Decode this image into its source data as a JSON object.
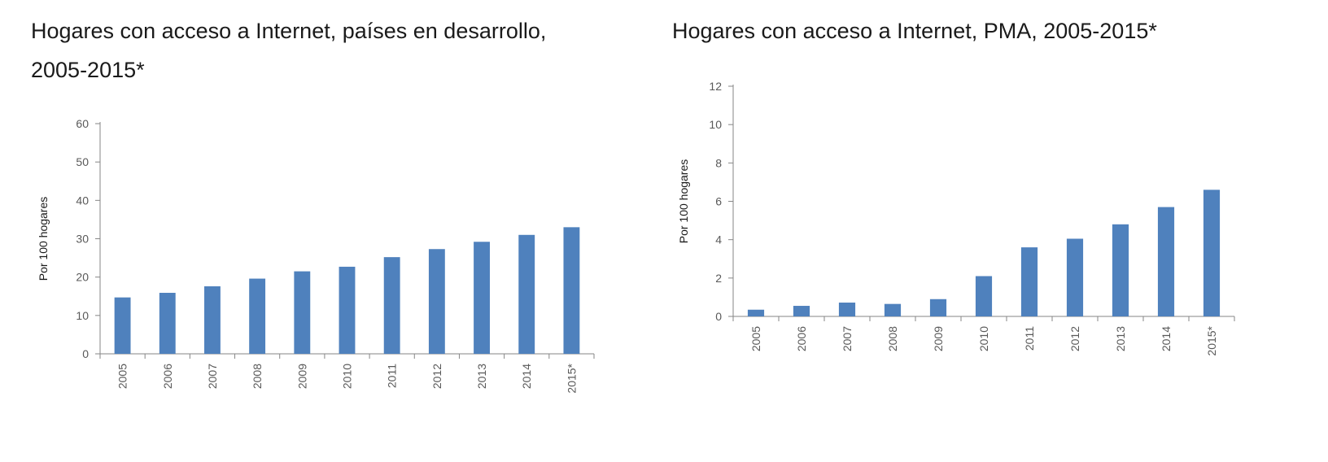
{
  "chart_data": [
    {
      "type": "bar",
      "title": "Hogares con acceso a Internet, países en desarrollo, 2005-2015*",
      "title_lines": [
        "Hogares con acceso a Internet, países en desarrollo,",
        "2005-2015*"
      ],
      "xlabel": "",
      "ylabel": "Por 100 hogares",
      "ylim": [
        0,
        60
      ],
      "yticks": [
        0,
        10,
        20,
        30,
        40,
        50,
        60
      ],
      "categories": [
        "2005",
        "2006",
        "2007",
        "2008",
        "2009",
        "2010",
        "2011",
        "2012",
        "2013",
        "2014",
        "2015*"
      ],
      "values": [
        14.7,
        15.9,
        17.6,
        19.6,
        21.5,
        22.7,
        25.2,
        27.3,
        29.2,
        31.0,
        33.0
      ],
      "grid": false,
      "bar_color": "#4f81bd"
    },
    {
      "type": "bar",
      "title": "Hogares con acceso a Internet, PMA, 2005-2015*",
      "title_lines": [
        "Hogares con acceso a Internet, PMA, 2005-2015*"
      ],
      "xlabel": "",
      "ylabel": "Por 100 hogares",
      "ylim": [
        0,
        12
      ],
      "yticks": [
        0,
        2,
        4,
        6,
        8,
        10,
        12
      ],
      "categories": [
        "2005",
        "2006",
        "2007",
        "2008",
        "2009",
        "2010",
        "2011",
        "2012",
        "2013",
        "2014",
        "2015*"
      ],
      "values": [
        0.35,
        0.55,
        0.72,
        0.65,
        0.9,
        2.1,
        3.6,
        4.05,
        4.8,
        5.7,
        6.6
      ],
      "grid": false,
      "bar_color": "#4f81bd"
    }
  ]
}
